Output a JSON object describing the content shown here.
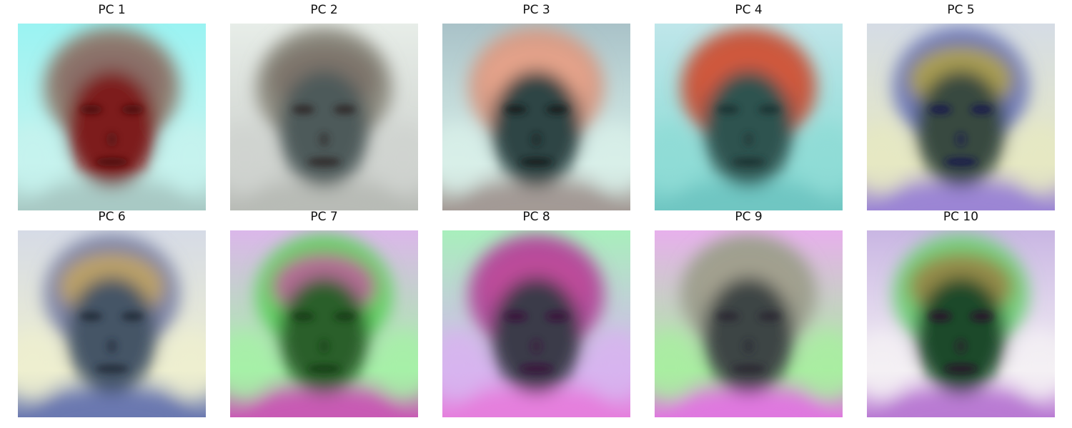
{
  "figure": {
    "panels": [
      {
        "title": "PC 1",
        "colors": {
          "bg": "#9af3f2",
          "bg2": "#c6f3ee",
          "hair": "#8f7f72",
          "face": "#7d1b1b",
          "feature": "#4a0f10",
          "hairline": "#8a6b66",
          "shoulder": "#a8c9c4"
        }
      },
      {
        "title": "PC 2",
        "colors": {
          "bg": "#e7ede8",
          "bg2": "#cfd3cf",
          "hair": "#8c8a7f",
          "face": "#4d5a5a",
          "feature": "#2f2826",
          "hairline": "#7a6e66",
          "shoulder": "#b8bbb6"
        }
      },
      {
        "title": "PC 3",
        "colors": {
          "bg": "#a9c2c8",
          "bg2": "#d8efe9",
          "hair": "#d69b86",
          "face": "#2e4444",
          "feature": "#141a1a",
          "hairline": "#e7a58b",
          "shoulder": "#a39a95"
        }
      },
      {
        "title": "PC 4",
        "colors": {
          "bg": "#bfe6ea",
          "bg2": "#8fdcd6",
          "hair": "#c4583f",
          "face": "#2f5250",
          "feature": "#1c3231",
          "hairline": "#d4583c",
          "shoulder": "#6fc6c2"
        }
      },
      {
        "title": "PC 5",
        "colors": {
          "bg": "#d5dce5",
          "bg2": "#e6e8c3",
          "hair": "#6d78b8",
          "face": "#374a3f",
          "feature": "#17164e",
          "hairline": "#b4a340",
          "shoulder": "#9b85d4"
        }
      },
      {
        "title": "PC 6",
        "colors": {
          "bg": "#d6dbe6",
          "bg2": "#eeefd0",
          "hair": "#7d84a7",
          "face": "#445566",
          "feature": "#222a38",
          "hairline": "#c6a65c",
          "shoulder": "#6a78b0"
        }
      },
      {
        "title": "PC 7",
        "colors": {
          "bg": "#dbb7ea",
          "bg2": "#a6f0a8",
          "hair": "#5fd160",
          "face": "#2a5f2a",
          "feature": "#123a12",
          "hairline": "#c25a9e",
          "shoulder": "#c85ab4"
        }
      },
      {
        "title": "PC 8",
        "colors": {
          "bg": "#a8efbc",
          "bg2": "#d7b4ef",
          "hair": "#b14d9b",
          "face": "#3b3b4a",
          "feature": "#3a0f3a",
          "hairline": "#c04c9a",
          "shoulder": "#e57fdd"
        }
      },
      {
        "title": "PC 9",
        "colors": {
          "bg": "#e7b0ec",
          "bg2": "#a9eda1",
          "hair": "#9c9f8e",
          "face": "#3d4545",
          "feature": "#2a2530",
          "hairline": "#a4a08f",
          "shoulder": "#df78df"
        }
      },
      {
        "title": "PC 10",
        "colors": {
          "bg": "#c9b6e3",
          "bg2": "#f4f0f4",
          "hair": "#72d07c",
          "face": "#1f4a2a",
          "feature": "#2c0f2c",
          "hairline": "#9a7f40",
          "shoulder": "#b97ad3"
        }
      }
    ]
  }
}
